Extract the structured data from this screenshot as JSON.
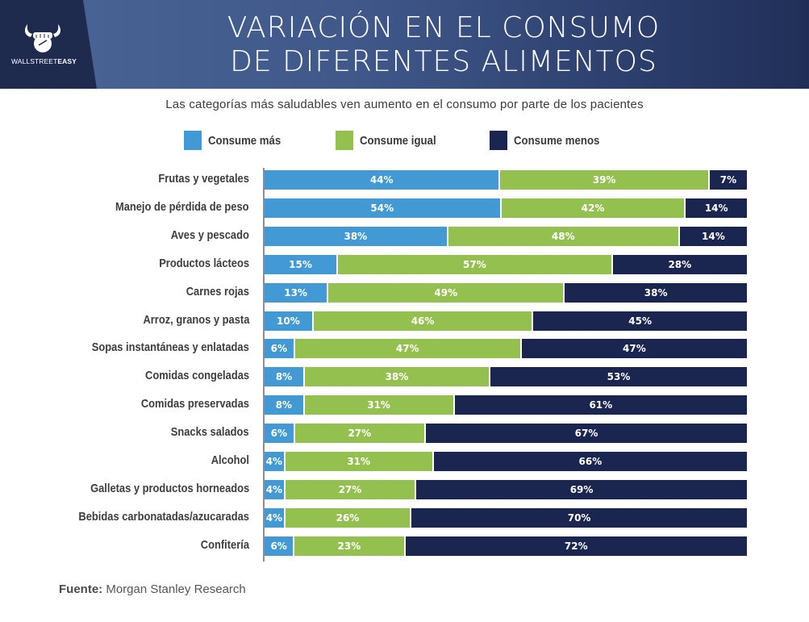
{
  "header": {
    "logo_text_light": "WALLSTREET",
    "logo_text_bold": "EASY",
    "title_line1": "VARIACIÓN EN EL CONSUMO",
    "title_line2": "DE DIFERENTES ALIMENTOS"
  },
  "footer": {
    "source_label": "Fuente:",
    "source_value": "Morgan Stanley Research"
  },
  "colors": {
    "consume_mas": "#4399d3",
    "consume_igual": "#93c04f",
    "consume_menos": "#1a2550",
    "header_bg": "#3f5889",
    "logo_bg": "#1f2a4f"
  },
  "chart_data": {
    "type": "bar",
    "orientation": "horizontal",
    "stacked": true,
    "title": "VARIACIÓN EN EL CONSUMO DE DIFERENTES ALIMENTOS",
    "subtitle": "Las categorías más saludables ven aumento en el consumo por parte de los pacientes",
    "xlabel": "",
    "ylabel": "",
    "grid": false,
    "legend_position": "top-center",
    "value_format": "percent",
    "categories": [
      "Frutas y vegetales",
      "Manejo de pérdida de peso",
      "Aves y pescado",
      "Productos lácteos",
      "Carnes rojas",
      "Arroz, granos y pasta",
      "Sopas instantáneas y enlatadas",
      "Comidas congeladas",
      "Comidas preservadas",
      "Snacks salados",
      "Alcohol",
      "Galletas y productos horneados",
      "Bebidas carbonatadas/azucaradas",
      "Confitería"
    ],
    "series": [
      {
        "name": "Consume más",
        "key": "mas",
        "values": [
          44,
          54,
          38,
          15,
          13,
          10,
          6,
          8,
          8,
          6,
          4,
          4,
          4,
          6
        ]
      },
      {
        "name": "Consume igual",
        "key": "igual",
        "values": [
          39,
          42,
          48,
          57,
          49,
          46,
          47,
          38,
          31,
          27,
          31,
          27,
          26,
          23
        ]
      },
      {
        "name": "Consume menos",
        "key": "menos",
        "values": [
          7,
          14,
          14,
          28,
          38,
          45,
          47,
          53,
          61,
          67,
          66,
          69,
          70,
          72
        ]
      }
    ]
  }
}
